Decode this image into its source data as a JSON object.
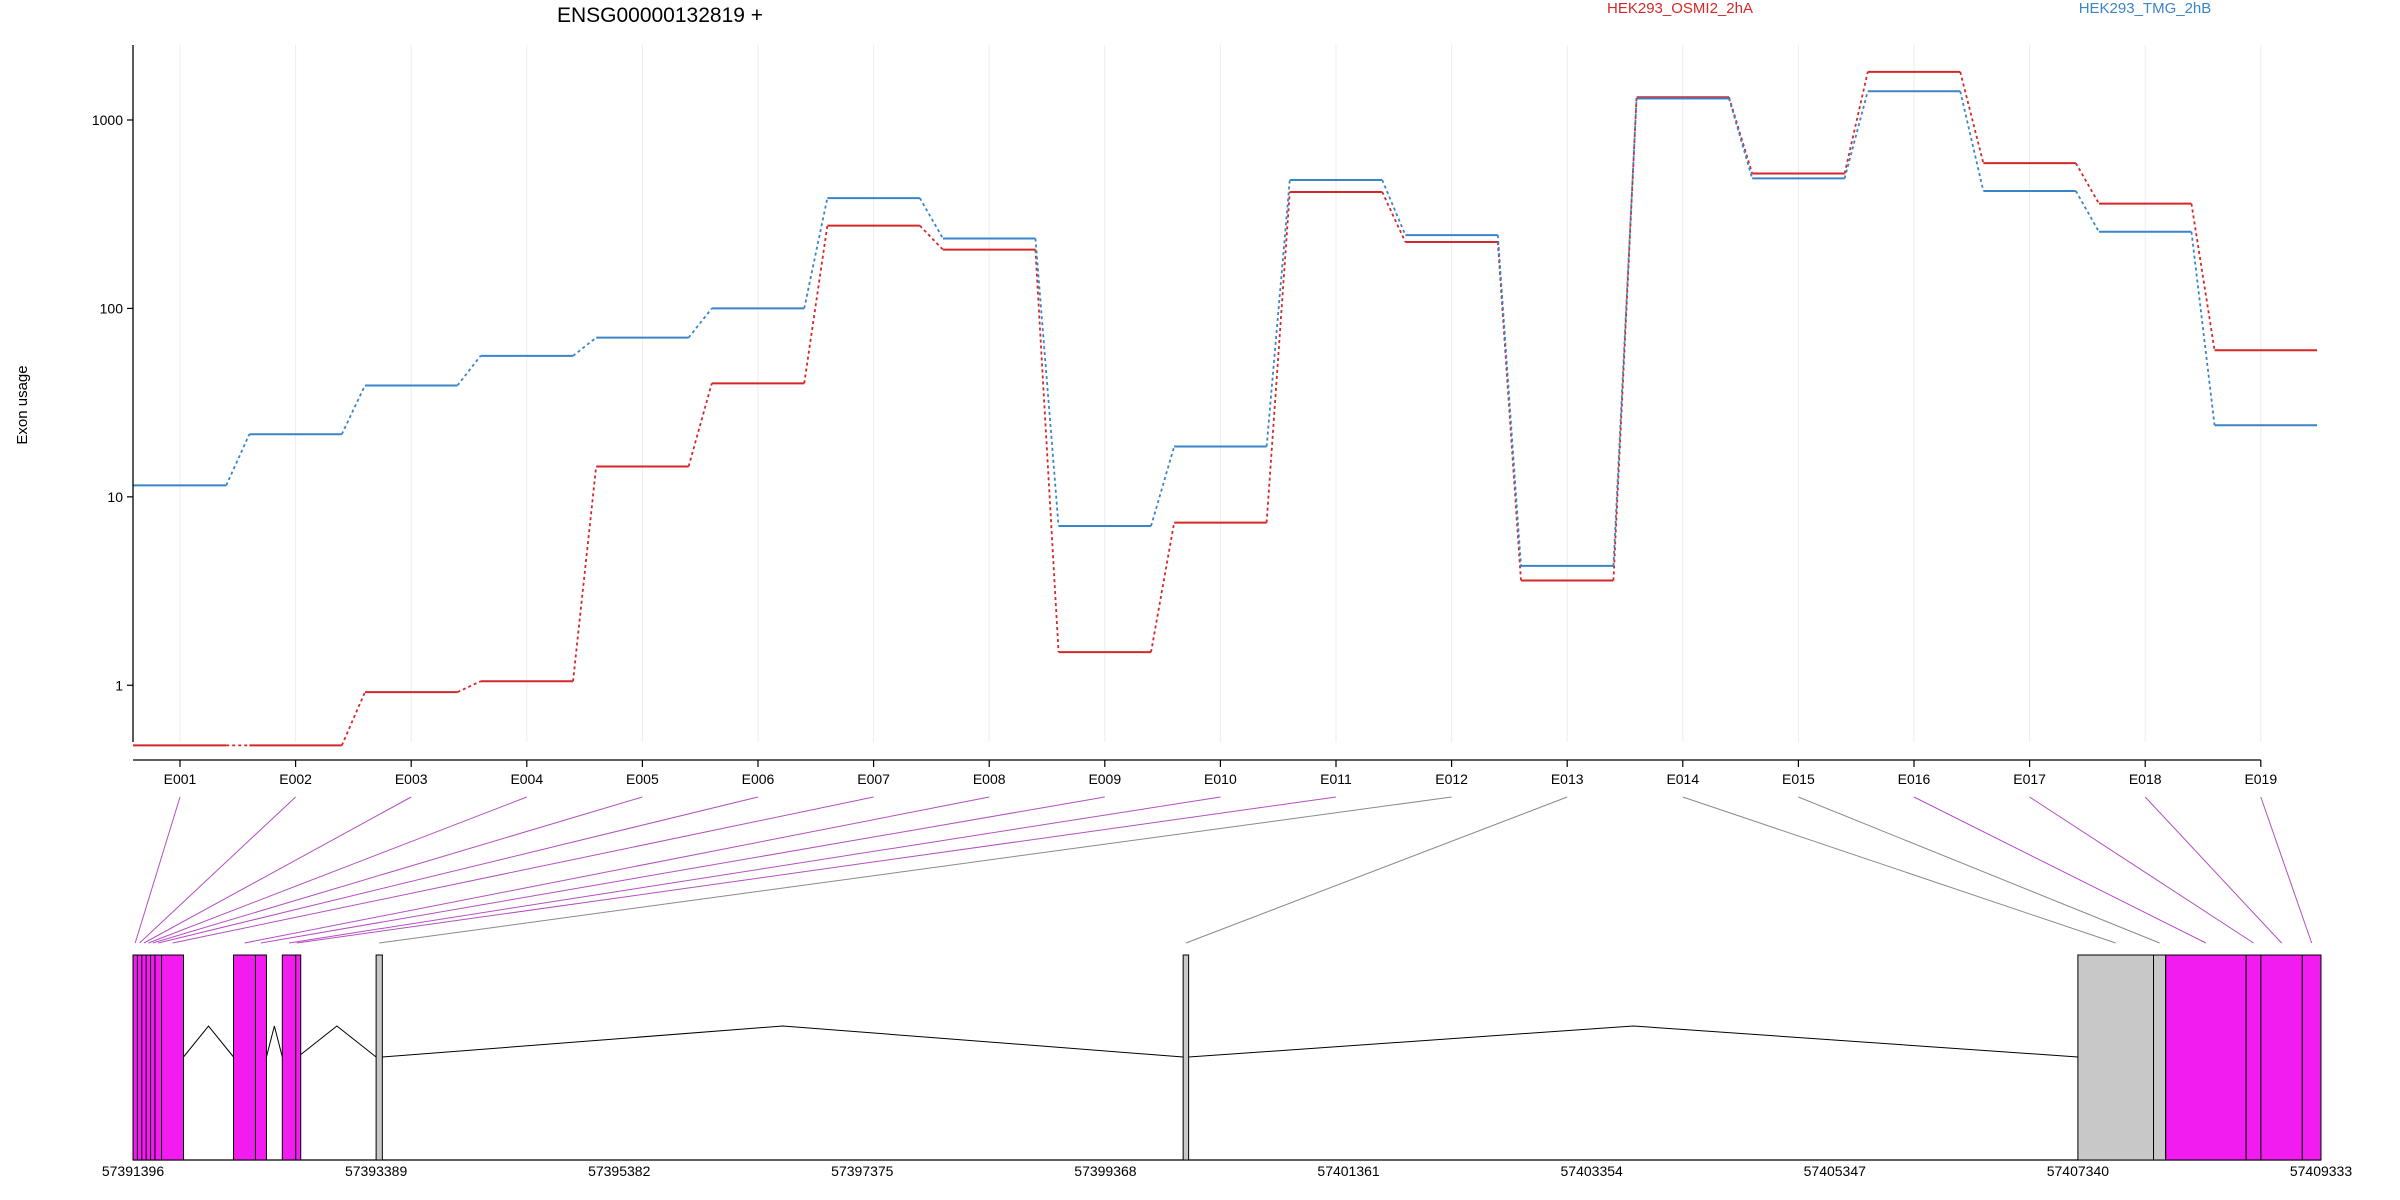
{
  "chart_data": {
    "type": "line",
    "title": "ENSG00000132819 +",
    "xlabel": "",
    "ylabel": "Exon usage",
    "y_scale": "log",
    "ylim": [
      0.5,
      2500
    ],
    "y_ticks": [
      1,
      10,
      100,
      1000
    ],
    "y_tick_labels": [
      "1",
      "10",
      "100",
      "1000"
    ],
    "grid": "vertical",
    "legend_placement": "top",
    "categories": [
      "E001",
      "E002",
      "E003",
      "E004",
      "E005",
      "E006",
      "E007",
      "E008",
      "E009",
      "E010",
      "E011",
      "E012",
      "E013",
      "E014",
      "E015",
      "E016",
      "E017",
      "E018",
      "E019"
    ],
    "series": [
      {
        "name": "HEK293_OSMI2_2hA",
        "color": "#d62728",
        "values": [
          0.48,
          0.48,
          0.92,
          1.05,
          14.5,
          40,
          275,
          205,
          1.5,
          7.3,
          415,
          225,
          3.6,
          1320,
          520,
          1800,
          590,
          360,
          60
        ]
      },
      {
        "name": "HEK293_TMG_2hB",
        "color": "#3a84c8",
        "values": [
          11.5,
          21.5,
          39,
          56,
          70,
          100,
          385,
          235,
          7,
          18.5,
          480,
          245,
          4.3,
          1300,
          490,
          1420,
          420,
          255,
          24
        ]
      }
    ],
    "genomic_axis": {
      "tick_labels": [
        "57391396",
        "57393389",
        "57395382",
        "57397375",
        "57399368",
        "57401361",
        "57403354",
        "57405347",
        "57407340",
        "57409333"
      ],
      "range": [
        57391396,
        57409333
      ]
    },
    "gene_model": {
      "exon_colors": {
        "significant": "#f21cf0",
        "not_significant": "#c8c8c8"
      },
      "exons": [
        {
          "id": "E001",
          "start": 57391396,
          "end": 57391432,
          "significant": true
        },
        {
          "id": "E002",
          "start": 57391432,
          "end": 57391468,
          "significant": true
        },
        {
          "id": "E003",
          "start": 57391468,
          "end": 57391504,
          "significant": true
        },
        {
          "id": "E004",
          "start": 57391504,
          "end": 57391540,
          "significant": true
        },
        {
          "id": "E005",
          "start": 57391540,
          "end": 57391576,
          "significant": true
        },
        {
          "id": "E006",
          "start": 57391576,
          "end": 57391630,
          "significant": true
        },
        {
          "id": "E007",
          "start": 57391630,
          "end": 57391810,
          "significant": true
        },
        {
          "id": "E008",
          "start": 57392220,
          "end": 57392400,
          "significant": true
        },
        {
          "id": "E009",
          "start": 57392400,
          "end": 57392490,
          "significant": true
        },
        {
          "id": "E010",
          "start": 57392620,
          "end": 57392730,
          "significant": true
        },
        {
          "id": "E011",
          "start": 57392730,
          "end": 57392746,
          "significant": true
        },
        {
          "id": "E012",
          "start": 57393389,
          "end": 57393440,
          "significant": false
        },
        {
          "id": "E013",
          "start": 57400005,
          "end": 57400050,
          "significant": false
        },
        {
          "id": "E014",
          "start": 57407340,
          "end": 57407960,
          "significant": false
        },
        {
          "id": "E015",
          "start": 57407960,
          "end": 57408060,
          "significant": false
        },
        {
          "id": "E016",
          "start": 57408060,
          "end": 57408720,
          "significant": true
        },
        {
          "id": "E017",
          "start": 57408720,
          "end": 57408840,
          "significant": true
        },
        {
          "id": "E018",
          "start": 57408840,
          "end": 57409180,
          "significant": true
        },
        {
          "id": "E019",
          "start": 57409180,
          "end": 57409333,
          "significant": true
        }
      ]
    }
  }
}
